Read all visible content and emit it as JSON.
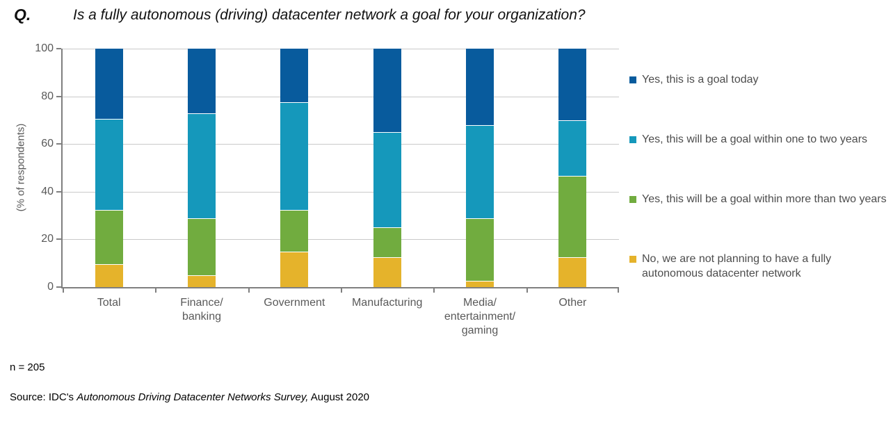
{
  "header": {
    "q_label": "Q.",
    "title": "Is a fully autonomous (driving) datacenter network a goal for your organization?"
  },
  "footer": {
    "n_label": "n = 205",
    "source_prefix": "Source: IDC's ",
    "source_italic": "Autonomous Driving Datacenter Networks Survey,",
    "source_suffix": " August 2020"
  },
  "colors": {
    "axis": "#7F7F7F",
    "gridline": "#C9C9C9",
    "tick_label": "#595959",
    "legend_text": "#4D4D4D"
  },
  "chart_data": {
    "type": "bar",
    "stacked": true,
    "title": "Is a fully autonomous (driving) datacenter network a goal for your organization?",
    "xlabel": "",
    "ylabel": "(% of respondents)",
    "ylim": [
      0,
      100
    ],
    "yticks": [
      0,
      20,
      40,
      60,
      80,
      100
    ],
    "grid": true,
    "legend_position": "right",
    "n": 205,
    "categories": [
      "Total",
      "Finance/\nbanking",
      "Government",
      "Manufacturing",
      "Media/\nentertainment/\ngaming",
      "Other"
    ],
    "series": [
      {
        "name": "Yes, this is a goal today",
        "color": "#085B9D",
        "values": [
          29.5,
          27.0,
          22.5,
          35.0,
          32.0,
          30.0
        ]
      },
      {
        "name": "Yes, this will be a goal within one to two years",
        "color": "#1598BB",
        "values": [
          38.0,
          44.0,
          45.0,
          40.0,
          39.0,
          23.5
        ]
      },
      {
        "name": "Yes, this will be a goal within more than two years",
        "color": "#71AC3F",
        "values": [
          23.0,
          24.0,
          17.5,
          12.5,
          26.5,
          34.0
        ]
      },
      {
        "name": "No, we are not planning to have a fully autonomous datacenter network",
        "color": "#E5B32B",
        "values": [
          9.5,
          5.0,
          15.0,
          12.5,
          2.5,
          12.5
        ]
      }
    ]
  }
}
